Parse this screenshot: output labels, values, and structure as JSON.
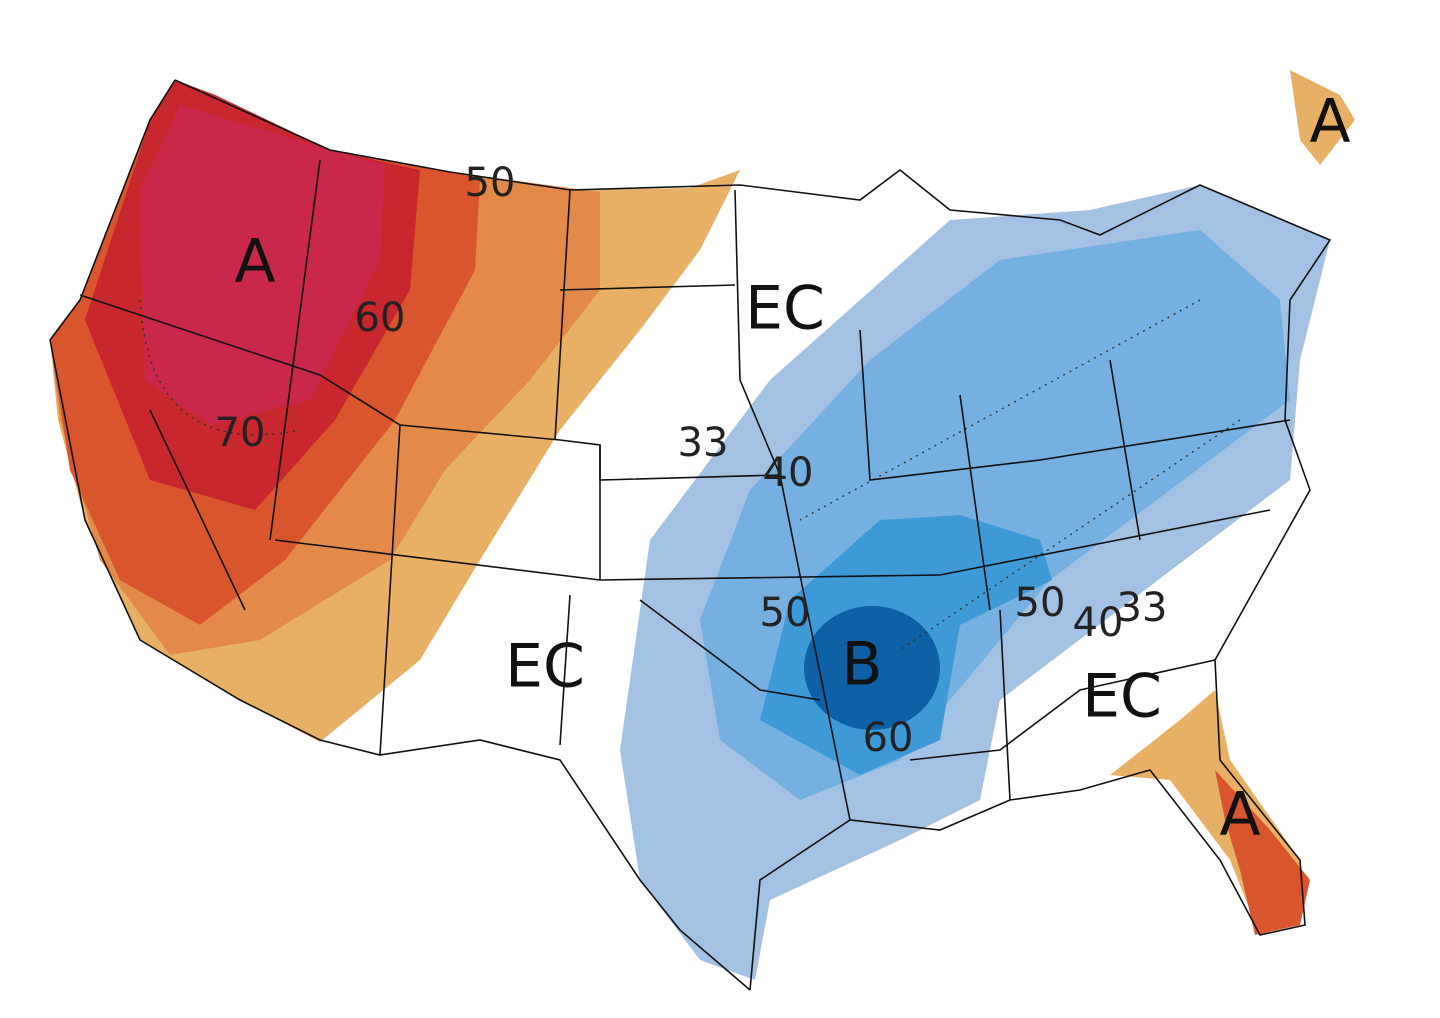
{
  "map": {
    "labels": [
      {
        "text": "A"
      },
      {
        "text": "60"
      },
      {
        "text": "70"
      },
      {
        "text": "50"
      },
      {
        "text": "EC"
      },
      {
        "text": "33"
      },
      {
        "text": "40"
      },
      {
        "text": "EC"
      },
      {
        "text": "50"
      },
      {
        "text": "B"
      },
      {
        "text": "60"
      },
      {
        "text": "50"
      },
      {
        "text": "40"
      },
      {
        "text": "33"
      },
      {
        "text": "EC"
      },
      {
        "text": "A"
      },
      {
        "text": "A"
      }
    ]
  }
}
